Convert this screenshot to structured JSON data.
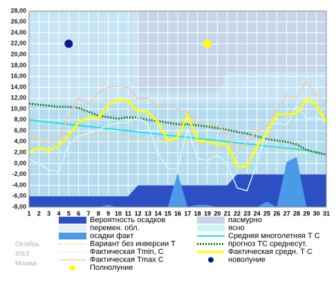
{
  "chart_data": {
    "type": "line",
    "categories": [
      1,
      2,
      3,
      4,
      5,
      6,
      7,
      8,
      9,
      10,
      11,
      12,
      13,
      14,
      15,
      16,
      17,
      18,
      19,
      20,
      21,
      22,
      23,
      24,
      25,
      26,
      27,
      28,
      29,
      30,
      31
    ],
    "ylim": [
      -8,
      28
    ],
    "yticks": [
      {
        "value": -8,
        "label": "-8,00"
      },
      {
        "value": -6,
        "label": "-6,00"
      },
      {
        "value": -4,
        "label": "-4,00"
      },
      {
        "value": -2,
        "label": "-2,00"
      },
      {
        "value": 0,
        "label": "0,00"
      },
      {
        "value": 2,
        "label": "2,00"
      },
      {
        "value": 4,
        "label": "4,00"
      },
      {
        "value": 6,
        "label": "6,00"
      },
      {
        "value": 8,
        "label": "8,00"
      },
      {
        "value": 10,
        "label": "10,00"
      },
      {
        "value": 12,
        "label": "12,00"
      },
      {
        "value": 14,
        "label": "14,00"
      },
      {
        "value": 16,
        "label": "16,00"
      },
      {
        "value": 18,
        "label": "18,00"
      },
      {
        "value": 20,
        "label": "20,00"
      },
      {
        "value": 22,
        "label": "22,00"
      },
      {
        "value": 24,
        "label": "24,00"
      },
      {
        "value": 26,
        "label": "26,00"
      },
      {
        "value": 28,
        "label": "28,00"
      }
    ],
    "grid": true,
    "caption": [
      "Октябрь",
      "2013",
      "Москва"
    ],
    "series": [
      {
        "name": "Вероятность осадков",
        "kind": "area",
        "color": "#2c4fc4",
        "values": [
          -6,
          -6,
          -6,
          -6,
          -6,
          -6,
          -6,
          -6,
          -6,
          -6,
          -6,
          -4,
          -4,
          -4,
          -4,
          -4,
          -4,
          -4,
          -4,
          -4,
          -4,
          -2,
          -2,
          -2,
          -2,
          -2,
          -2,
          -2,
          -2,
          -2,
          -2
        ]
      },
      {
        "name": "пасмурно",
        "kind": "band",
        "color": "#c6d6e8",
        "values": [
          null,
          null,
          null,
          null,
          null,
          null,
          null,
          null,
          null,
          null,
          null,
          13,
          13,
          13,
          13,
          13,
          13,
          13,
          13,
          13,
          16.8,
          16.8,
          16.8,
          16.8,
          16.8,
          16.8,
          16.8,
          16.8,
          16.8,
          16.8,
          16.8
        ]
      },
      {
        "name": "перемен. обл.",
        "kind": "band",
        "color": "#e2eef8"
      },
      {
        "name": "ясно",
        "kind": "band",
        "color": "#cff5f7"
      },
      {
        "name": "осадки факт",
        "kind": "area",
        "color": "#4a9ae8",
        "values": [
          -8,
          -8,
          -8,
          -8,
          -8,
          -8,
          -8,
          -8,
          -7.6,
          -8,
          -8,
          -8,
          -8,
          -8,
          -8,
          -1.8,
          -8,
          -7.6,
          -7.6,
          -8,
          -8,
          -8,
          -8,
          -8,
          -7,
          -8,
          0.3,
          1.2,
          -8,
          -8,
          -8
        ]
      },
      {
        "name": "Средняя многолетняя Т С",
        "kind": "line",
        "color": "#19e0f0",
        "width": 2,
        "values": [
          8,
          7.8,
          7.6,
          7.4,
          7.2,
          7,
          6.8,
          6.6,
          6.4,
          6.2,
          6,
          5.8,
          5.6,
          5.4,
          5.2,
          5,
          4.8,
          4.6,
          4.4,
          4.2,
          4,
          3.8,
          3.6,
          3.4,
          3.2,
          3,
          2.8,
          2.6,
          2.4,
          2.1,
          1.8
        ]
      },
      {
        "name": "Вариант без инверсии Т",
        "kind": "line",
        "color": "#f0e080",
        "width": 2,
        "dash": "2 2",
        "values": [
          4.8,
          4.6,
          4.5,
          4.7,
          4.9,
          5,
          4.9,
          5,
          5.1,
          5.1,
          4.6,
          4.3,
          4.2,
          4.3,
          4.1,
          4,
          3.9,
          3.8,
          3.9,
          3.7,
          3.6,
          3.4,
          3.3,
          3.1,
          3,
          2.8,
          2.6,
          2.4,
          2.2,
          2,
          1.8
        ]
      },
      {
        "name": "прогноз ТС среднесут.",
        "kind": "line",
        "color": "#1e7a1e",
        "width": 3,
        "dash": "2 2",
        "values": [
          11,
          10.8,
          10.6,
          10.4,
          10.4,
          10.2,
          9.5,
          8.8,
          8.5,
          8.2,
          8.5,
          8.4,
          8,
          7.8,
          7.5,
          7.2,
          7.2,
          7,
          6.8,
          6.5,
          6.2,
          5.8,
          5.5,
          5,
          4.5,
          4.2,
          4,
          3.5,
          2.5,
          2,
          1.6
        ]
      },
      {
        "name": "Фактическая Tmin, С",
        "kind": "line",
        "color": "#d8f8f8",
        "width": 1.5,
        "values": [
          0.8,
          0,
          -1.2,
          -1.5,
          3.5,
          5,
          5.5,
          6.2,
          7,
          7.5,
          7.5,
          8.5,
          7,
          2,
          -1,
          -1,
          6.5,
          1,
          0.5,
          1.5,
          0,
          -4.5,
          -5,
          0,
          6.5,
          7.5,
          7,
          10.8,
          8.2,
          8.5,
          7.5
        ]
      },
      {
        "name": "Фактическая средн. Т С",
        "kind": "line",
        "color": "#ffff00",
        "width": 3,
        "values": [
          2.2,
          2.8,
          2.4,
          3.2,
          5.2,
          7.5,
          8.5,
          8.3,
          10.8,
          11.7,
          11.5,
          9.6,
          9.5,
          7.6,
          4.2,
          4.8,
          9,
          4.2,
          4.1,
          3.5,
          3.6,
          -0.5,
          -0.6,
          3.2,
          5.5,
          9,
          9,
          9.2,
          11.8,
          10.8,
          7.5
        ]
      },
      {
        "name": "Фактическая Tmax С",
        "kind": "line",
        "color": "#f2c8a8",
        "width": 1.5,
        "values": [
          4.5,
          4.5,
          3.5,
          4.8,
          8.5,
          12,
          11,
          13,
          14,
          14.2,
          14,
          12,
          12,
          10.5,
          10.8,
          10,
          9.5,
          7.5,
          7,
          7,
          5.5,
          2,
          4,
          6,
          7,
          9.8,
          12.5,
          12,
          15,
          12.5,
          11
        ]
      },
      {
        "name": "новолуние",
        "kind": "point",
        "color": "#0a1a8a",
        "points": [
          {
            "x": 5,
            "y": 22
          }
        ]
      },
      {
        "name": "Полнолуние",
        "kind": "point",
        "color": "#ffff00",
        "points": [
          {
            "x": 19,
            "y": 22
          }
        ]
      }
    ]
  }
}
